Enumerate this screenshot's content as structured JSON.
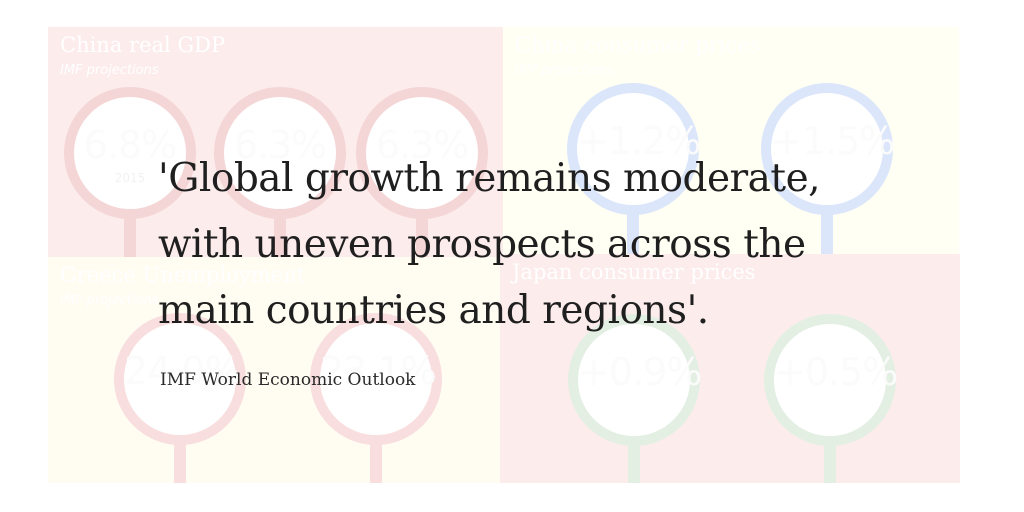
{
  "panels": [
    {
      "title": "China real GDP",
      "subtitle": "IMF projections",
      "bg": "#fcecec",
      "accent": "#f5d6d6",
      "rings": [
        {
          "value": "6.8%",
          "year": "2015"
        },
        {
          "value": "6.3%",
          "year": ""
        },
        {
          "value": "6.3%",
          "year": ""
        }
      ]
    },
    {
      "title": "China consumer prices",
      "subtitle": "IMF projections",
      "bg": "#fffff3",
      "accent": "#dbe6fb",
      "rings": [
        {
          "value": "+1.2%",
          "year": ""
        },
        {
          "value": "+1.5%",
          "year": ""
        }
      ]
    },
    {
      "title": "Greece Unemployment",
      "subtitle": "IMF projections",
      "bg": "#fffcf2",
      "accent": "#f8dede",
      "rings": [
        {
          "value": "24.0%",
          "year": ""
        },
        {
          "value": "23.1%",
          "year": ""
        }
      ]
    },
    {
      "title": "Japan consumer prices",
      "subtitle": "",
      "bg": "#fcecec",
      "accent": "#e4efe4",
      "rings": [
        {
          "value": "+0.9%",
          "year": ""
        },
        {
          "value": "+0.5%",
          "year": ""
        }
      ]
    }
  ],
  "quote": {
    "lines": [
      "'Global growth remains moderate,",
      "with uneven prospects across the",
      "main countries and regions'."
    ],
    "source": "IMF World Economic Outlook"
  },
  "colors": {
    "text": "#1f1f1f"
  }
}
